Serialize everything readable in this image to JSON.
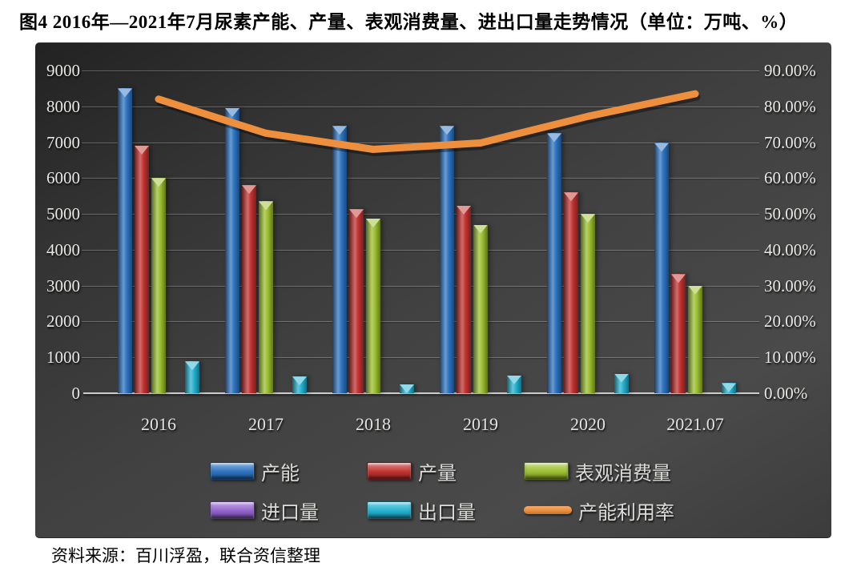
{
  "page": {
    "title": "图4 2016年—2021年7月尿素产能、产量、表观消费量、进出口量走势情况（单位：万吨、%）",
    "source_note": "资料来源：百川浮盈，联合资信整理"
  },
  "chart_data": {
    "type": "bar",
    "subtype": "clustered-bar-with-line-combo",
    "title": "2016年—2021年7月尿素产能、产量、表观消费量、进出口量走势情况",
    "unit": "万吨、%",
    "categories": [
      "2016",
      "2017",
      "2018",
      "2019",
      "2020",
      "2021.07"
    ],
    "series": [
      {
        "key": "capacity",
        "name": "产能",
        "type": "bar",
        "axis": "left",
        "color": "#2E74C2",
        "values": [
          8500,
          7950,
          7450,
          7450,
          7250,
          6980
        ]
      },
      {
        "key": "production",
        "name": "产量",
        "type": "bar",
        "axis": "left",
        "color": "#C23331",
        "values": [
          6900,
          5800,
          5130,
          5230,
          5600,
          3320
        ]
      },
      {
        "key": "apparent-consumption",
        "name": "表观消费量",
        "type": "bar",
        "axis": "left",
        "color": "#9DBF30",
        "values": [
          6000,
          5350,
          4870,
          4700,
          5000,
          3000
        ]
      },
      {
        "key": "imports",
        "name": "进口量",
        "type": "bar",
        "axis": "left",
        "color": "#9263CE",
        "values": [
          0,
          0,
          0,
          0,
          0,
          0
        ]
      },
      {
        "key": "exports",
        "name": "出口量",
        "type": "bar",
        "axis": "left",
        "color": "#24B2D0",
        "values": [
          887,
          466,
          245,
          495,
          545,
          280
        ]
      },
      {
        "key": "capacity-utilization",
        "name": "产能利用率",
        "type": "line",
        "axis": "right",
        "color": "#ED8F3C",
        "values": [
          82.0,
          72.5,
          68.0,
          69.8,
          77.2,
          83.5
        ]
      }
    ],
    "left_axis": {
      "min": 0,
      "max": 9000,
      "step": 1000,
      "ticks": [
        "0",
        "1000",
        "2000",
        "3000",
        "4000",
        "5000",
        "6000",
        "7000",
        "8000",
        "9000"
      ]
    },
    "right_axis": {
      "min": 0,
      "max": 90,
      "step": 10,
      "ticks": [
        "0.00%",
        "10.00%",
        "20.00%",
        "30.00%",
        "40.00%",
        "50.00%",
        "60.00%",
        "70.00%",
        "80.00%",
        "90.00%"
      ]
    },
    "grid": true,
    "legend_position": "bottom",
    "plot_background": "dark-gray-gradient"
  }
}
